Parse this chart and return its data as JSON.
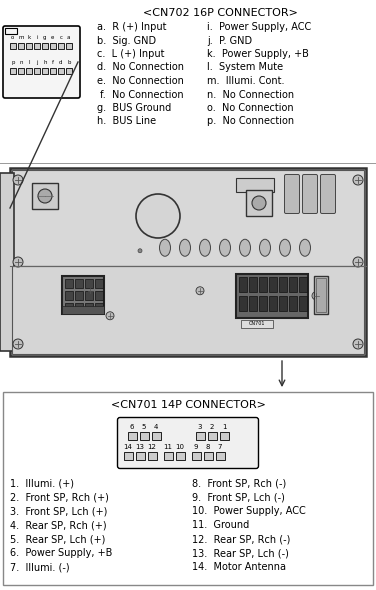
{
  "title_cn702": "<CN702 16P CONNECTOR>",
  "title_cn701": "<CN701 14P CONNECTOR>",
  "cn702_left": [
    "a.  R (+) Input",
    "b.  Sig. GND",
    "c.  L (+) Input",
    "d.  No Connection",
    "e.  No Connection",
    " f.  No Connection",
    "g.  BUS Ground",
    "h.  BUS Line"
  ],
  "cn702_right": [
    "i.  Power Supply, ACC",
    "j.  P. GND",
    "k.  Power Supply, +B",
    "l.  System Mute",
    "m.  Illumi. Cont.",
    "n.  No Connection",
    "o.  No Connection",
    "p.  No Connection"
  ],
  "cn701_left": [
    "1.  Illumi. (+)",
    "2.  Front SP, Rch (+)",
    "3.  Front SP, Lch (+)",
    "4.  Rear SP, Rch (+)",
    "5.  Rear SP, Lch (+)",
    "6.  Power Supply, +B",
    "7.  Illumi. (-)"
  ],
  "cn701_right": [
    "8.  Front SP, Rch (-)",
    "9.  Front SP, Lch (-)",
    "10.  Power Supply, ACC",
    "11.  Ground",
    "12.  Rear SP, Rch (-)",
    "13.  Rear SP, Lch (-)",
    "14.  Motor Antenna"
  ],
  "bg_color": "#ffffff",
  "text_color": "#000000",
  "border_color": "#000000",
  "gray_light": "#e8e8e8",
  "gray_mid": "#c8c8c8",
  "gray_dark": "#888888"
}
